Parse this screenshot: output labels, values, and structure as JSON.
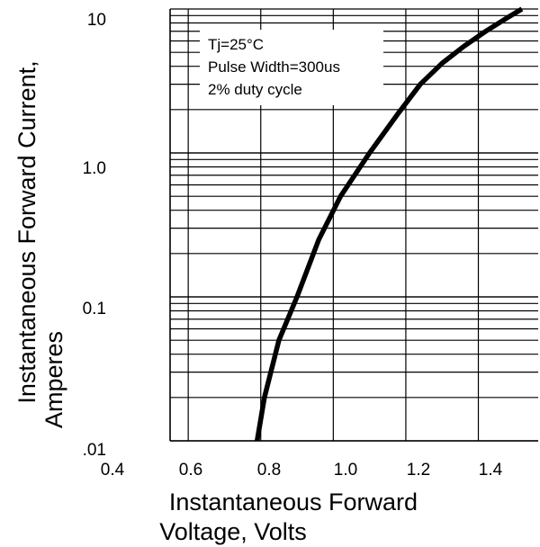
{
  "chart_data": {
    "type": "line",
    "x_axis": {
      "label_lines": [
        "Instantaneous Forward",
        "Voltage, Volts"
      ],
      "ticks": [
        {
          "value": 0.4,
          "label": "0.4"
        },
        {
          "value": 0.6,
          "label": "0.6"
        },
        {
          "value": 0.8,
          "label": "0.8"
        },
        {
          "value": 1.0,
          "label": "1.0"
        },
        {
          "value": 1.2,
          "label": "1.2"
        },
        {
          "value": 1.4,
          "label": "1.4"
        }
      ],
      "range": [
        0.4,
        1.6
      ]
    },
    "y_axis": {
      "label_lines": [
        "Instantaneous Forward Current,",
        "Amperes"
      ],
      "scale": "log",
      "ticks": [
        {
          "value": 0.01,
          "label": ".01"
        },
        {
          "value": 0.1,
          "label": "0.1"
        },
        {
          "value": 1,
          "label": "1.0"
        },
        {
          "value": 10,
          "label": "10"
        }
      ],
      "range": [
        0.01,
        10
      ]
    },
    "grid": true,
    "annotation_lines": [
      "Tj=25°C",
      "Pulse Width=300us",
      "2% duty cycle"
    ],
    "series": [
      {
        "x": [
          0.79,
          0.81,
          0.85,
          0.9,
          0.96,
          1.02,
          1.1,
          1.18,
          1.24,
          1.3,
          1.36,
          1.42,
          1.48,
          1.52
        ],
        "y": [
          0.01,
          0.02,
          0.05,
          0.1,
          0.25,
          0.5,
          1.0,
          1.9,
          3.0,
          4.2,
          5.5,
          7.0,
          8.7,
          10.0
        ],
        "color": "#000000"
      }
    ]
  }
}
